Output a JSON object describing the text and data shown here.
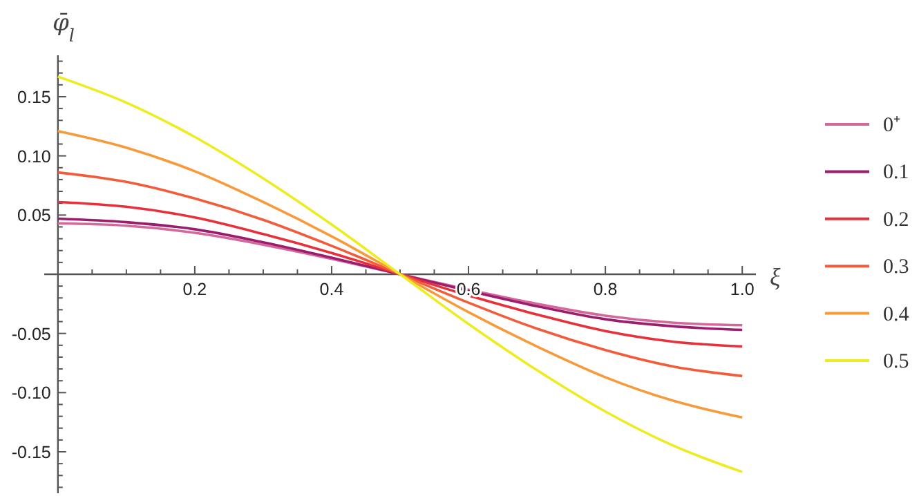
{
  "chart_data": {
    "type": "line",
    "xlabel": "ξ",
    "ylabel": "φ̄$_{l}$",
    "legend": "right",
    "grid": false,
    "marker": "none",
    "line_style": "solid",
    "x": [
      0,
      0.1,
      0.2,
      0.3,
      0.4,
      0.5,
      0.6,
      0.7,
      0.8,
      0.9,
      1
    ],
    "xlim": [
      -0.02,
      1.02
    ],
    "ylim": [
      -0.185,
      0.185
    ],
    "xticks": [
      {
        "value": 0.05,
        "label": null
      },
      {
        "value": 0.1,
        "label": null
      },
      {
        "value": 0.15,
        "label": null
      },
      0.2,
      {
        "value": 0.25,
        "label": null
      },
      {
        "value": 0.3,
        "label": null
      },
      {
        "value": 0.35,
        "label": null
      },
      0.4,
      {
        "value": 0.45,
        "label": null
      },
      {
        "value": 0.5,
        "label": null
      },
      {
        "value": 0.55,
        "label": null
      },
      0.6,
      {
        "value": 0.65,
        "label": null
      },
      {
        "value": 0.7,
        "label": null
      },
      {
        "value": 0.75,
        "label": null
      },
      0.8,
      {
        "value": 0.85,
        "label": null
      },
      {
        "value": 0.9,
        "label": null
      },
      {
        "value": 0.95,
        "label": null
      },
      {
        "value": 1,
        "label": "1.0"
      }
    ],
    "yticks": [
      {
        "value": -0.18,
        "label": null
      },
      {
        "value": -0.17,
        "label": null
      },
      {
        "value": -0.16,
        "label": null
      },
      {
        "value": -0.15,
        "label": "-0.15"
      },
      {
        "value": -0.14,
        "label": null
      },
      {
        "value": -0.13,
        "label": null
      },
      {
        "value": -0.12,
        "label": null
      },
      {
        "value": -0.11,
        "label": null
      },
      {
        "value": -0.1,
        "label": "-0.10"
      },
      {
        "value": -0.09,
        "label": null
      },
      {
        "value": -0.08,
        "label": null
      },
      {
        "value": -0.07,
        "label": null
      },
      {
        "value": -0.06,
        "label": null
      },
      {
        "value": -0.05,
        "label": "-0.05"
      },
      {
        "value": -0.04,
        "label": null
      },
      {
        "value": -0.03,
        "label": null
      },
      {
        "value": -0.02,
        "label": null
      },
      {
        "value": -0.01,
        "label": null
      },
      {
        "value": 0.01,
        "label": null
      },
      {
        "value": 0.02,
        "label": null
      },
      {
        "value": 0.03,
        "label": null
      },
      {
        "value": 0.04,
        "label": null
      },
      {
        "value": 0.05,
        "label": "0.05"
      },
      {
        "value": 0.06,
        "label": null
      },
      {
        "value": 0.07,
        "label": null
      },
      {
        "value": 0.08,
        "label": null
      },
      {
        "value": 0.09,
        "label": null
      },
      {
        "value": 0.1,
        "label": "0.10"
      },
      {
        "value": 0.11,
        "label": null
      },
      {
        "value": 0.12,
        "label": null
      },
      {
        "value": 0.13,
        "label": null
      },
      {
        "value": 0.14,
        "label": null
      },
      {
        "value": 0.15,
        "label": "0.15"
      },
      {
        "value": 0.16,
        "label": null
      },
      {
        "value": 0.17,
        "label": null
      },
      {
        "value": 0.18,
        "label": null
      }
    ],
    "series": [
      {
        "name": "0⁺",
        "color": "#d4689a",
        "values": [
          0.043,
          0.041,
          0.035,
          0.025,
          0.013,
          0,
          -0.013,
          -0.025,
          -0.035,
          -0.041,
          -0.043
        ]
      },
      {
        "name": "0.1",
        "color": "#9c1c6e",
        "values": [
          0.047,
          0.044,
          0.038,
          0.027,
          0.014,
          0,
          -0.014,
          -0.027,
          -0.038,
          -0.044,
          -0.047
        ]
      },
      {
        "name": "0.2",
        "color": "#e8303a",
        "values": [
          0.061,
          0.057,
          0.048,
          0.034,
          0.018,
          0,
          -0.018,
          -0.034,
          -0.048,
          -0.057,
          -0.061
        ]
      },
      {
        "name": "0.3",
        "color": "#f25c3a",
        "values": [
          0.086,
          0.078,
          0.064,
          0.046,
          0.024,
          0,
          -0.024,
          -0.046,
          -0.064,
          -0.078,
          -0.086
        ]
      },
      {
        "name": "0.4",
        "color": "#f89a3a",
        "values": [
          0.121,
          0.107,
          0.087,
          0.061,
          0.032,
          0,
          -0.032,
          -0.061,
          -0.087,
          -0.107,
          -0.121
        ]
      },
      {
        "name": "0.5",
        "color": "#ecec20",
        "values": [
          0.167,
          0.145,
          0.116,
          0.081,
          0.042,
          0,
          -0.042,
          -0.081,
          -0.116,
          -0.145,
          -0.167
        ]
      }
    ]
  }
}
